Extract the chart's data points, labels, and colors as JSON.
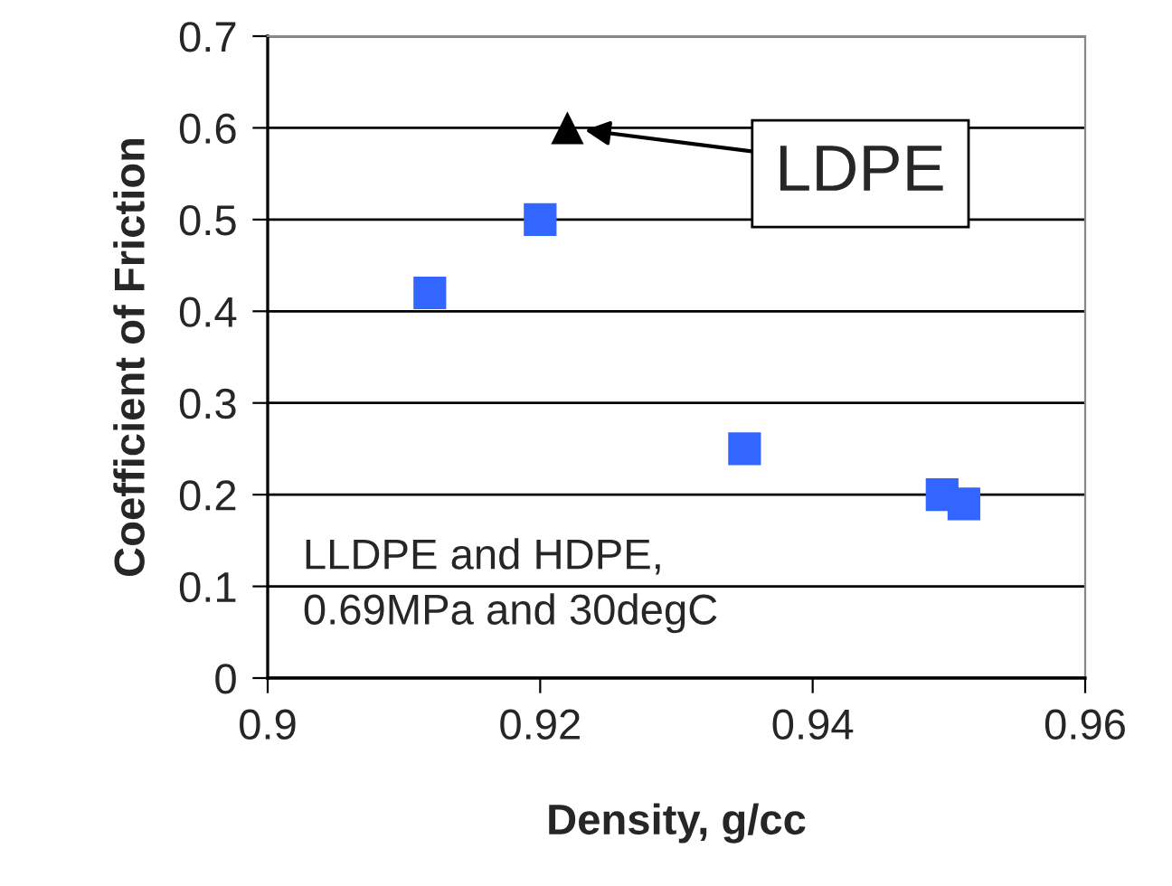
{
  "chart_data": {
    "type": "scatter",
    "xlabel": "Density, g/cc",
    "ylabel": "Coefficient of Friction",
    "series": [
      {
        "color": "#3366ff",
        "marker": "square",
        "x": [
          0.9119,
          0.92,
          0.935,
          0.9495,
          0.9511
        ],
        "values": [
          0.42,
          0.5,
          0.25,
          0.2,
          0.19
        ]
      },
      {
        "color": "#000000",
        "marker": "triangle",
        "x": [
          0.922
        ],
        "values": [
          0.6
        ]
      }
    ],
    "xlim": [
      0.9,
      0.96
    ],
    "xticks": [
      0.9,
      0.92,
      0.94,
      0.96
    ],
    "ylim": [
      0,
      0.7
    ],
    "yticks": [
      0,
      0.1,
      0.2,
      0.3,
      0.4,
      0.5,
      0.6,
      0.7
    ],
    "grid": "y",
    "legend": false,
    "annotations": [
      "LDPE",
      "LLDPE and HDPE,\n0.69MPa and 30degC"
    ]
  }
}
